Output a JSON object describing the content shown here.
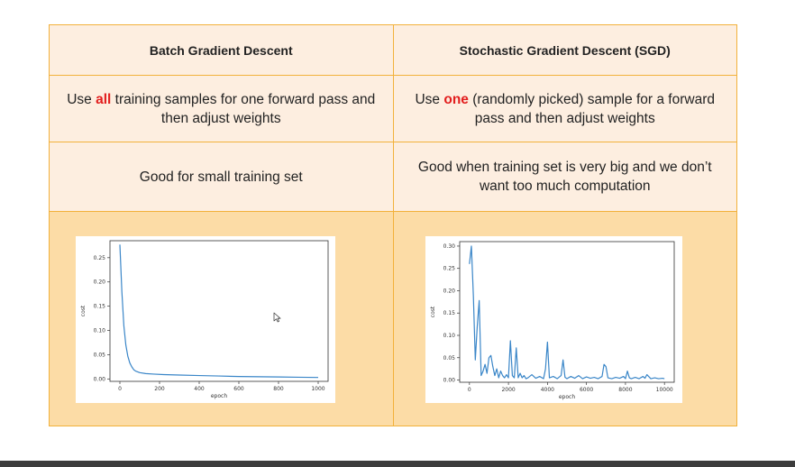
{
  "table": {
    "headers": [
      "Batch Gradient Descent",
      "Stochastic Gradient Descent (SGD)"
    ],
    "row2": {
      "left": {
        "pre": "Use ",
        "highlight": "all",
        "post": " training samples for one forward pass and then adjust weights"
      },
      "right": {
        "pre": "Use ",
        "highlight": "one",
        "post": " (randomly picked) sample for a forward pass and then adjust weights"
      }
    },
    "row3": {
      "left": "Good for small training set",
      "right": "Good when training set is very big and we don’t want too much computation"
    }
  },
  "colors": {
    "border": "#f2b13b",
    "cell_bg": "#fdeee0",
    "chart_row_bg": "#fcdca6",
    "highlight": "#e21e1e",
    "line": "#3a86c8"
  },
  "chart_data": [
    {
      "type": "line",
      "xlabel": "epoch",
      "ylabel": "cost",
      "xlim": [
        -50,
        1050
      ],
      "ylim": [
        -0.005,
        0.285
      ],
      "xticks": [
        0,
        200,
        400,
        600,
        800,
        1000
      ],
      "yticks": [
        0.0,
        0.05,
        0.1,
        0.15,
        0.2,
        0.25
      ],
      "ytick_labels": [
        "0.00",
        "0.05",
        "0.10",
        "0.15",
        "0.20",
        "0.25"
      ],
      "series": [
        {
          "x": [
            0,
            10,
            20,
            30,
            40,
            50,
            60,
            70,
            80,
            100,
            130,
            170,
            220,
            300,
            400,
            500,
            600,
            700,
            800,
            900,
            1000
          ],
          "y": [
            0.277,
            0.18,
            0.11,
            0.07,
            0.047,
            0.033,
            0.025,
            0.019,
            0.016,
            0.013,
            0.011,
            0.01,
            0.009,
            0.008,
            0.007,
            0.006,
            0.005,
            0.0045,
            0.004,
            0.0035,
            0.003
          ]
        }
      ]
    },
    {
      "type": "line",
      "xlabel": "epoch",
      "ylabel": "cost",
      "xlim": [
        -500,
        10500
      ],
      "ylim": [
        -0.005,
        0.31
      ],
      "xticks": [
        0,
        2000,
        4000,
        6000,
        8000,
        10000
      ],
      "yticks": [
        0.0,
        0.05,
        0.1,
        0.15,
        0.2,
        0.25,
        0.3
      ],
      "ytick_labels": [
        "0.00",
        "0.05",
        "0.10",
        "0.15",
        "0.20",
        "0.25",
        "0.30"
      ],
      "series": [
        {
          "x": [
            0,
            100,
            200,
            300,
            400,
            500,
            600,
            700,
            800,
            900,
            1000,
            1100,
            1200,
            1300,
            1400,
            1500,
            1600,
            1700,
            1800,
            1900,
            2000,
            2100,
            2200,
            2300,
            2400,
            2500,
            2600,
            2700,
            2800,
            2900,
            3000,
            3200,
            3400,
            3600,
            3800,
            3900,
            4000,
            4100,
            4300,
            4500,
            4700,
            4800,
            4900,
            5000,
            5200,
            5400,
            5600,
            5800,
            6000,
            6200,
            6400,
            6600,
            6800,
            6900,
            7000,
            7100,
            7300,
            7500,
            7700,
            7900,
            8000,
            8100,
            8200,
            8300,
            8500,
            8700,
            8900,
            9000,
            9100,
            9300,
            9500,
            9700,
            9900,
            10000
          ],
          "y": [
            0.26,
            0.3,
            0.19,
            0.045,
            0.12,
            0.178,
            0.01,
            0.02,
            0.035,
            0.015,
            0.05,
            0.055,
            0.03,
            0.01,
            0.025,
            0.005,
            0.02,
            0.01,
            0.005,
            0.012,
            0.005,
            0.088,
            0.01,
            0.005,
            0.072,
            0.005,
            0.015,
            0.005,
            0.01,
            0.003,
            0.005,
            0.012,
            0.004,
            0.008,
            0.003,
            0.025,
            0.085,
            0.005,
            0.008,
            0.003,
            0.01,
            0.045,
            0.006,
            0.003,
            0.008,
            0.004,
            0.01,
            0.003,
            0.007,
            0.004,
            0.006,
            0.003,
            0.008,
            0.035,
            0.03,
            0.005,
            0.003,
            0.006,
            0.004,
            0.008,
            0.003,
            0.02,
            0.005,
            0.003,
            0.006,
            0.003,
            0.008,
            0.004,
            0.012,
            0.003,
            0.005,
            0.003,
            0.004,
            0.003
          ]
        }
      ]
    }
  ]
}
